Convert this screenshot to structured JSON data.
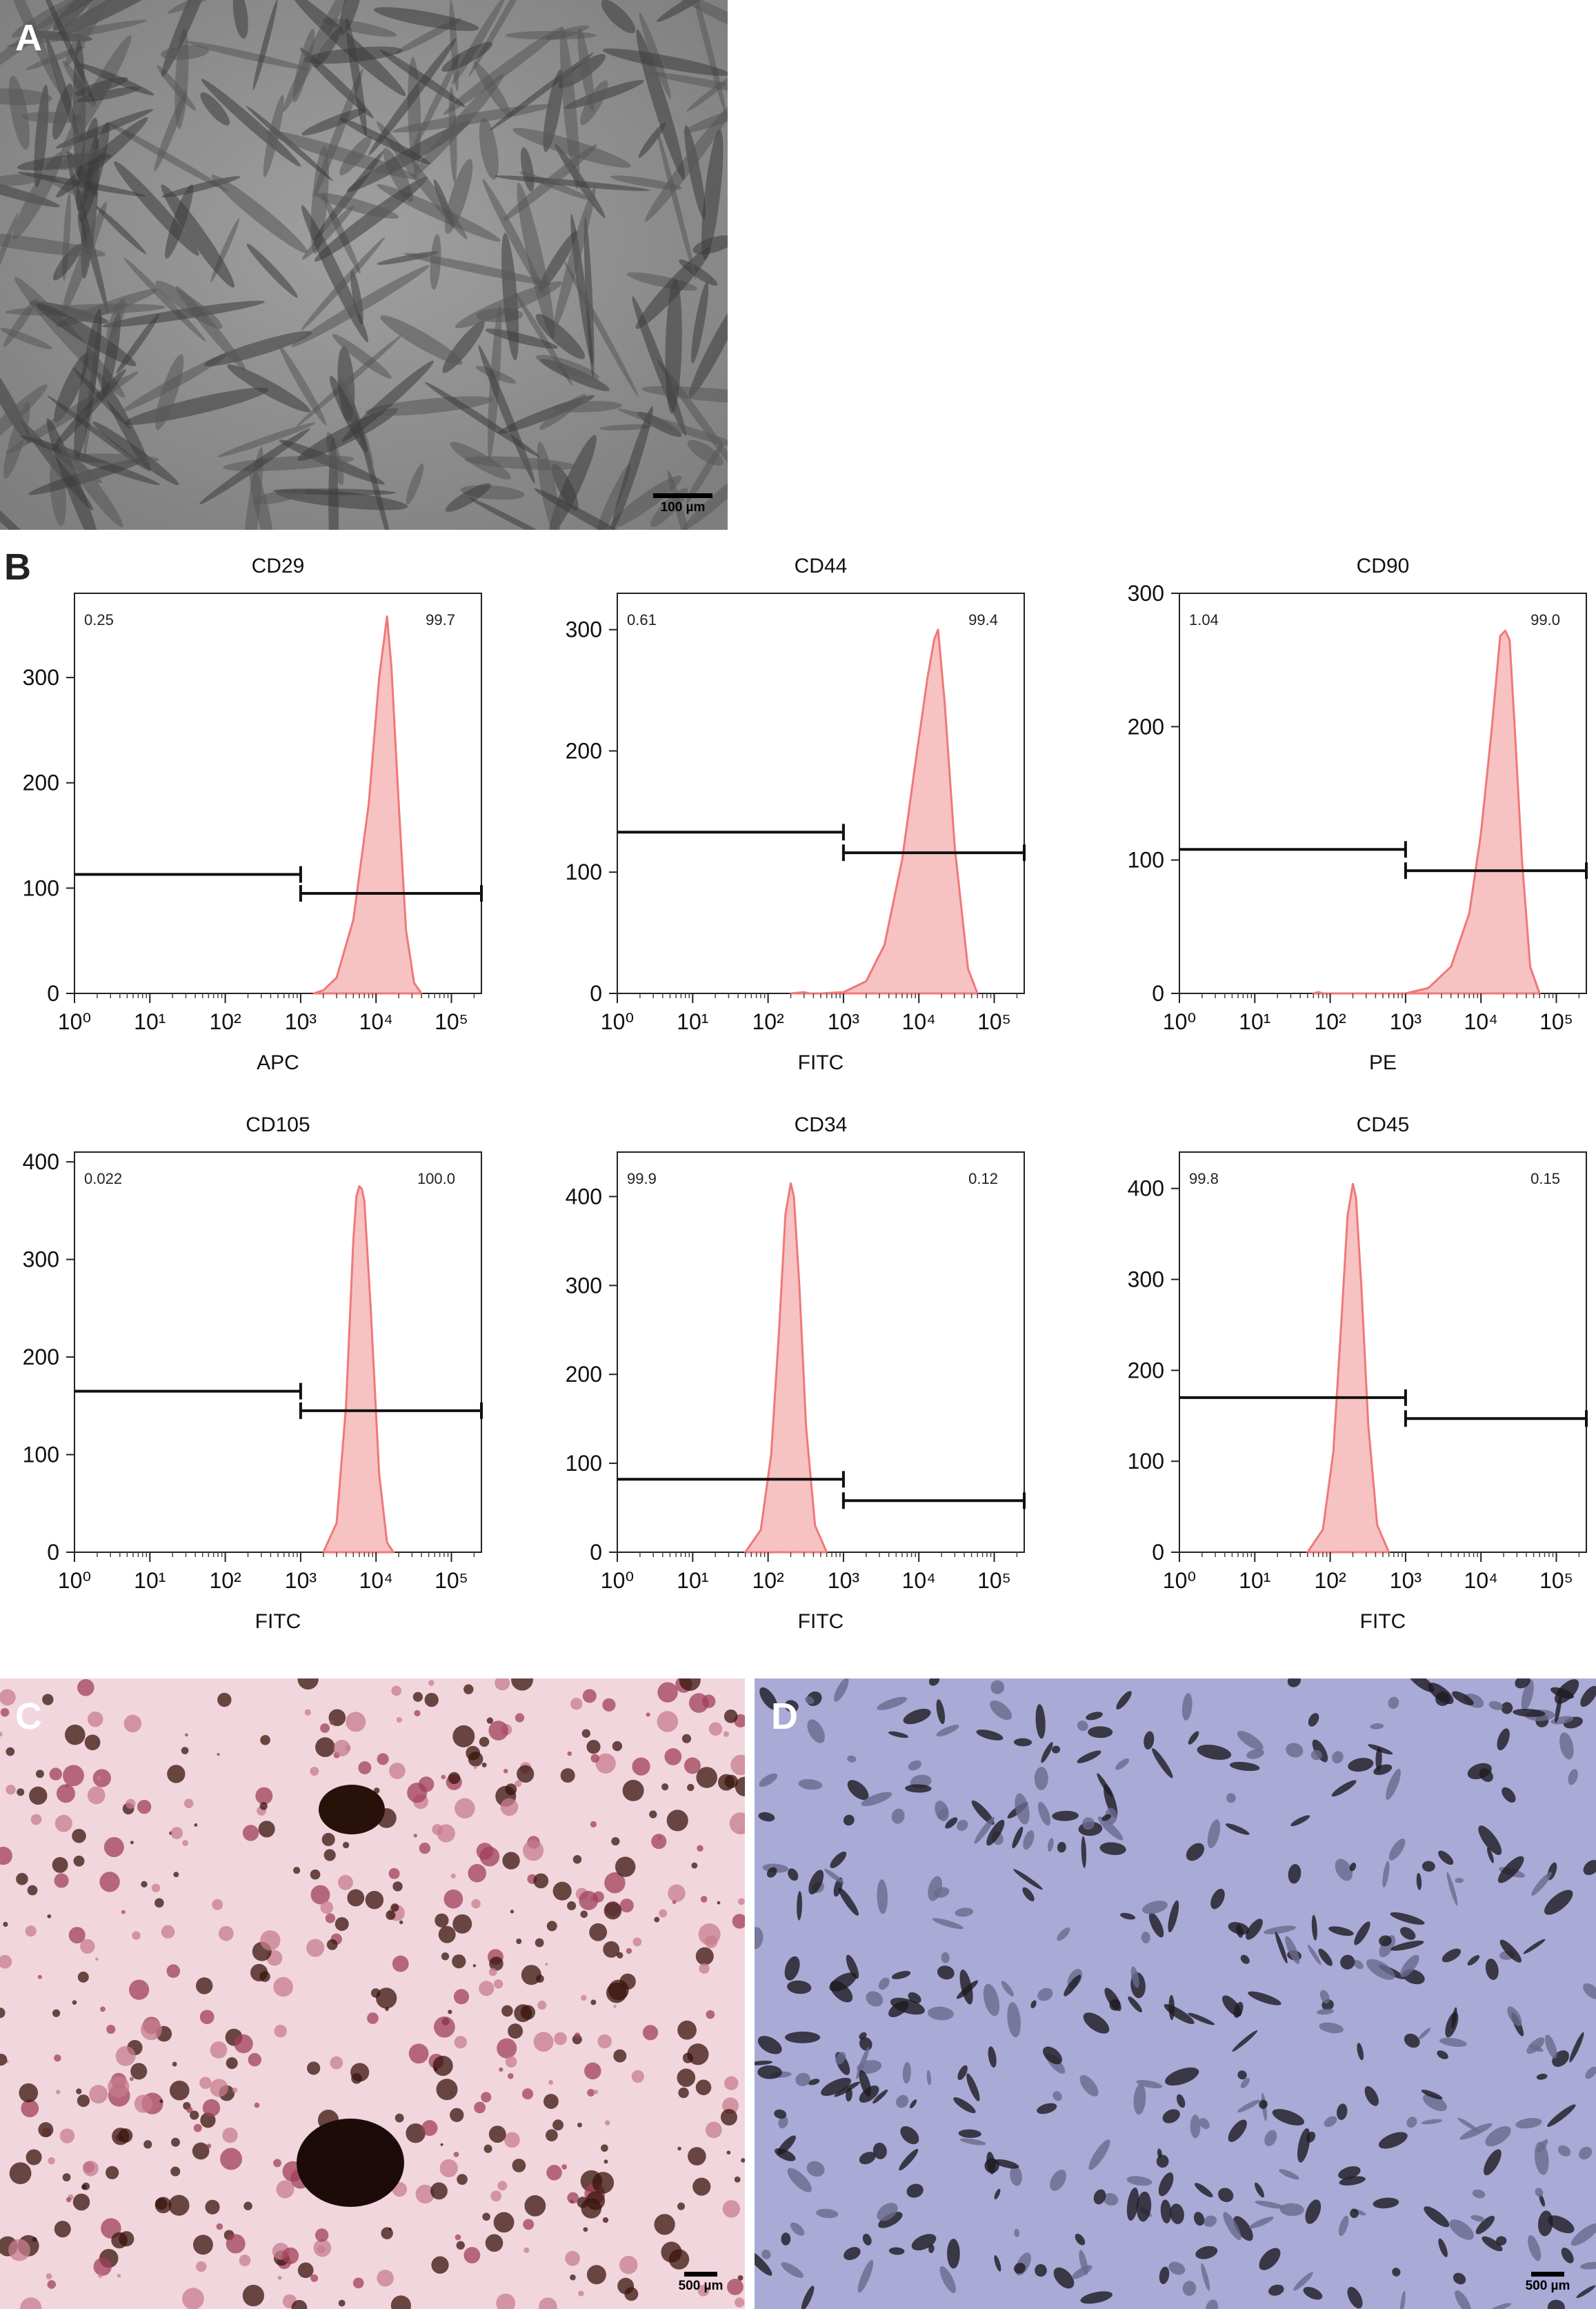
{
  "figure": {
    "panels": {
      "A": {
        "label": "A",
        "scale_bar": "100 µm"
      },
      "B": {
        "label": "B"
      },
      "C": {
        "label": "C",
        "scale_bar": "500 µm"
      },
      "D": {
        "label": "D",
        "scale_bar": "500 µm"
      }
    }
  },
  "chart_data": [
    {
      "type": "area",
      "title": "CD29",
      "xlabel": "APC",
      "ylabel": "",
      "x_scale": "log",
      "xlim": [
        1,
        250000
      ],
      "ylim": [
        0,
        380
      ],
      "yticks": [
        0,
        100,
        200,
        300
      ],
      "xtick_labels": [
        "10⁰",
        "10¹",
        "10²",
        "10³",
        "10⁴",
        "10⁵"
      ],
      "gate_left_pct": "0.25",
      "gate_right_pct": "99.7",
      "gates": [
        {
          "x0": 1,
          "x1": 1000,
          "y": 113
        },
        {
          "x0": 1000,
          "x1": 250000,
          "y": 95
        }
      ],
      "histogram": {
        "x": [
          1500,
          2000,
          3000,
          5000,
          8000,
          11000,
          13000,
          14000,
          16000,
          20000,
          25000,
          32000,
          40000
        ],
        "y": [
          0,
          3,
          15,
          70,
          180,
          300,
          340,
          358,
          310,
          180,
          60,
          10,
          0
        ]
      },
      "color": "#f07878",
      "fill": "#f7c2c2"
    },
    {
      "type": "area",
      "title": "CD44",
      "xlabel": "FITC",
      "ylabel": "",
      "x_scale": "log",
      "xlim": [
        1,
        250000
      ],
      "ylim": [
        0,
        330
      ],
      "yticks": [
        0,
        100,
        200,
        300
      ],
      "xtick_labels": [
        "10⁰",
        "10¹",
        "10²",
        "10³",
        "10⁴",
        "10⁵"
      ],
      "gate_left_pct": "0.61",
      "gate_right_pct": "99.4",
      "gates": [
        {
          "x0": 1,
          "x1": 1000,
          "y": 133
        },
        {
          "x0": 1000,
          "x1": 250000,
          "y": 116
        }
      ],
      "histogram": {
        "x": [
          200,
          300,
          350,
          500,
          1000,
          2000,
          3500,
          6000,
          9000,
          13000,
          16000,
          18000,
          22000,
          30000,
          45000,
          60000
        ],
        "y": [
          0,
          1,
          0,
          0,
          1,
          10,
          40,
          110,
          190,
          260,
          292,
          300,
          240,
          120,
          20,
          0
        ]
      },
      "color": "#f07878",
      "fill": "#f7c2c2"
    },
    {
      "type": "area",
      "title": "CD90",
      "xlabel": "PE",
      "ylabel": "",
      "x_scale": "log",
      "xlim": [
        1,
        250000
      ],
      "ylim": [
        0,
        300
      ],
      "yticks": [
        0,
        100,
        200,
        300
      ],
      "xtick_labels": [
        "10⁰",
        "10¹",
        "10²",
        "10³",
        "10⁴",
        "10⁵"
      ],
      "gate_left_pct": "1.04",
      "gate_right_pct": "99.0",
      "gates": [
        {
          "x0": 1,
          "x1": 1000,
          "y": 108
        },
        {
          "x0": 1000,
          "x1": 250000,
          "y": 92
        }
      ],
      "histogram": {
        "x": [
          60,
          70,
          80,
          1000,
          2000,
          4000,
          7000,
          10000,
          14000,
          18000,
          21000,
          24000,
          28000,
          35000,
          45000,
          60000
        ],
        "y": [
          0,
          1,
          0,
          0,
          4,
          20,
          60,
          120,
          200,
          268,
          272,
          265,
          200,
          100,
          20,
          0
        ]
      },
      "color": "#f07878",
      "fill": "#f7c2c2"
    },
    {
      "type": "area",
      "title": "CD105",
      "xlabel": "FITC",
      "ylabel": "",
      "x_scale": "log",
      "xlim": [
        1,
        250000
      ],
      "ylim": [
        0,
        410
      ],
      "yticks": [
        0,
        100,
        200,
        300,
        400
      ],
      "xtick_labels": [
        "10⁰",
        "10¹",
        "10²",
        "10³",
        "10⁴",
        "10⁵"
      ],
      "gate_left_pct": "0.022",
      "gate_right_pct": "100.0",
      "gates": [
        {
          "x0": 1,
          "x1": 1000,
          "y": 165
        },
        {
          "x0": 1000,
          "x1": 250000,
          "y": 145
        }
      ],
      "histogram": {
        "x": [
          2000,
          3000,
          4000,
          5000,
          5500,
          6000,
          6500,
          7000,
          8500,
          11000,
          14000,
          17000
        ],
        "y": [
          0,
          30,
          150,
          320,
          365,
          375,
          372,
          360,
          250,
          80,
          10,
          0
        ]
      },
      "color": "#f07878",
      "fill": "#f7c2c2"
    },
    {
      "type": "area",
      "title": "CD34",
      "xlabel": "FITC",
      "ylabel": "",
      "x_scale": "log",
      "xlim": [
        1,
        250000
      ],
      "ylim": [
        0,
        450
      ],
      "yticks": [
        0,
        100,
        200,
        300,
        400
      ],
      "xtick_labels": [
        "10⁰",
        "10¹",
        "10²",
        "10³",
        "10⁴",
        "10⁵"
      ],
      "gate_left_pct": "99.9",
      "gate_right_pct": "0.12",
      "gates": [
        {
          "x0": 1,
          "x1": 1000,
          "y": 82
        },
        {
          "x0": 1000,
          "x1": 250000,
          "y": 58
        }
      ],
      "histogram": {
        "x": [
          50,
          80,
          110,
          140,
          170,
          200,
          220,
          260,
          320,
          420,
          600
        ],
        "y": [
          0,
          25,
          110,
          250,
          380,
          415,
          400,
          300,
          140,
          30,
          0
        ]
      },
      "color": "#f07878",
      "fill": "#f7c2c2"
    },
    {
      "type": "area",
      "title": "CD45",
      "xlabel": "FITC",
      "ylabel": "",
      "x_scale": "log",
      "xlim": [
        1,
        250000
      ],
      "ylim": [
        0,
        440
      ],
      "yticks": [
        0,
        100,
        200,
        300,
        400
      ],
      "xtick_labels": [
        "10⁰",
        "10¹",
        "10²",
        "10³",
        "10⁴",
        "10⁵"
      ],
      "gate_left_pct": "99.8",
      "gate_right_pct": "0.15",
      "gates": [
        {
          "x0": 1,
          "x1": 1000,
          "y": 170
        },
        {
          "x0": 1000,
          "x1": 250000,
          "y": 147
        }
      ],
      "histogram": {
        "x": [
          50,
          80,
          110,
          140,
          170,
          200,
          220,
          260,
          320,
          420,
          600
        ],
        "y": [
          0,
          25,
          110,
          250,
          370,
          405,
          390,
          290,
          140,
          30,
          0
        ]
      },
      "color": "#f07878",
      "fill": "#f7c2c2"
    }
  ]
}
